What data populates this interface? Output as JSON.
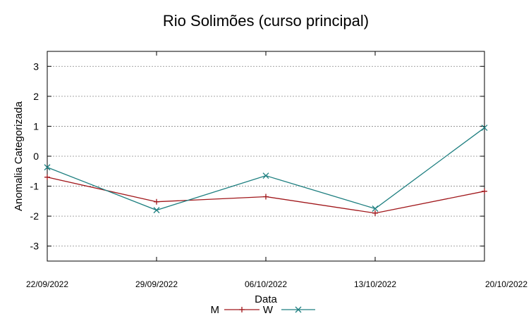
{
  "chart_data": {
    "type": "line",
    "title": "Rio Solimões (curso principal)",
    "xlabel": "Data",
    "ylabel": "Anomalia Categorizada",
    "categories": [
      "22/09/2022",
      "29/09/2022",
      "06/10/2022",
      "13/10/2022",
      "20/10/2022"
    ],
    "yticks": [
      "3",
      "2",
      "1",
      "0",
      "-1",
      "-2",
      "-3"
    ],
    "ytick_values": [
      3,
      2,
      1,
      0,
      -1,
      -2,
      -3
    ],
    "ylim": [
      -3.5,
      3.5
    ],
    "grid": true,
    "legend_position": "bottom-center",
    "series": [
      {
        "name": "M",
        "color": "#a0161a",
        "marker": "plus",
        "values": [
          -0.7,
          -1.52,
          -1.35,
          -1.9,
          -1.17
        ]
      },
      {
        "name": "W",
        "color": "#1e7f80",
        "marker": "x",
        "values": [
          -0.37,
          -1.8,
          -0.65,
          -1.75,
          0.95
        ]
      }
    ]
  }
}
